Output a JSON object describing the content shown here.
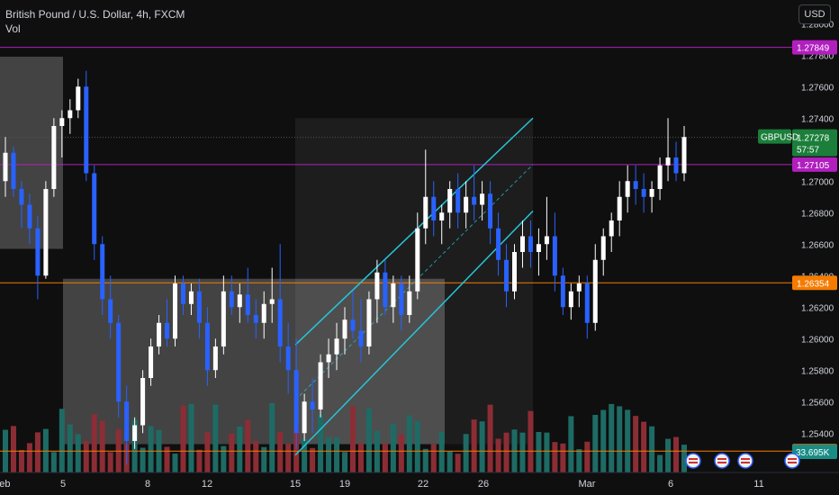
{
  "header": {
    "title": "British Pound / U.S. Dollar, 4h, FXCM",
    "indicator": "Vol"
  },
  "currency_button": "USD",
  "colors": {
    "background": "#0f0f0f",
    "bull": "#ffffff",
    "bear": "#2962ff",
    "vol_bull": "#1e6b65",
    "vol_bear": "#8c2d35",
    "channel": "#26c6da",
    "zone": "#ffffff",
    "level_purple": "#b11fbf",
    "level_orange": "#f57c00",
    "price_green": "#1b7e3a",
    "volume_teal": "#1a8c86"
  },
  "chart_data": {
    "type": "candlestick",
    "symbol": "GBPUSD",
    "timeframe": "4h",
    "y_axis_ticks": [
      "1.28000",
      "1.27800",
      "1.27600",
      "1.27400",
      "1.27200",
      "1.27000",
      "1.26800",
      "1.26600",
      "1.26400",
      "1.26200",
      "1.26000",
      "1.25800",
      "1.25600",
      "1.25400"
    ],
    "x_axis_ticks": [
      "Feb",
      "5",
      "8",
      "12",
      "15",
      "19",
      "22",
      "26",
      "Mar",
      "6",
      "11"
    ],
    "ylim": [
      1.2515,
      1.2815
    ],
    "horizontal_levels": [
      {
        "price": 1.27849,
        "label": "1.27849",
        "color": "purple"
      },
      {
        "price": 1.27105,
        "label": "1.27105",
        "color": "purple"
      },
      {
        "price": 1.26354,
        "label": "1.26354",
        "color": "orange"
      },
      {
        "price": 1.25286,
        "label": "1.25286",
        "color": "orange"
      }
    ],
    "last_price": {
      "symbol": "GBPUSD",
      "price": "1.27278",
      "countdown": "57:57"
    },
    "volume_label": "33.695K",
    "zones": [
      {
        "x_start": "Jan 30",
        "x_end": "Feb 5",
        "y_top": 1.2779,
        "y_bottom": 1.2657
      },
      {
        "x_start": "Feb 5",
        "x_end": "Feb 23",
        "y_top": 1.2638,
        "y_bottom": 1.2533
      },
      {
        "x_start": "Feb 15",
        "x_end": "Feb 28",
        "y_top": 1.274,
        "y_bottom": 1.2533
      }
    ],
    "channel": {
      "upper": [
        [
          "Feb 15",
          1.2596
        ],
        [
          "Feb 28",
          1.274
        ]
      ],
      "lower": [
        [
          "Feb 15",
          1.2526
        ],
        [
          "Feb 28",
          1.2681
        ]
      ]
    },
    "ohlc": [
      [
        1.27,
        1.2728,
        1.269,
        1.2718
      ],
      [
        1.2718,
        1.2722,
        1.269,
        1.2695
      ],
      [
        1.2695,
        1.27,
        1.267,
        1.2685
      ],
      [
        1.2685,
        1.2692,
        1.266,
        1.267
      ],
      [
        1.267,
        1.2678,
        1.2625,
        1.264
      ],
      [
        1.264,
        1.27,
        1.2638,
        1.2695
      ],
      [
        1.2695,
        1.274,
        1.269,
        1.2735
      ],
      [
        1.2735,
        1.2745,
        1.2715,
        1.274
      ],
      [
        1.274,
        1.2752,
        1.273,
        1.2745
      ],
      [
        1.2745,
        1.2765,
        1.274,
        1.276
      ],
      [
        1.276,
        1.277,
        1.27,
        1.2705
      ],
      [
        1.2705,
        1.271,
        1.265,
        1.266
      ],
      [
        1.266,
        1.2665,
        1.2615,
        1.2625
      ],
      [
        1.2625,
        1.264,
        1.26,
        1.261
      ],
      [
        1.261,
        1.2615,
        1.255,
        1.256
      ],
      [
        1.256,
        1.257,
        1.252,
        1.2535
      ],
      [
        1.2535,
        1.255,
        1.253,
        1.2545
      ],
      [
        1.2545,
        1.258,
        1.254,
        1.2575
      ],
      [
        1.2575,
        1.26,
        1.257,
        1.2595
      ],
      [
        1.2595,
        1.2615,
        1.259,
        1.261
      ],
      [
        1.261,
        1.2625,
        1.2595,
        1.26
      ],
      [
        1.26,
        1.264,
        1.2595,
        1.2635
      ],
      [
        1.2635,
        1.264,
        1.2615,
        1.2622
      ],
      [
        1.2622,
        1.2635,
        1.2615,
        1.263
      ],
      [
        1.263,
        1.2638,
        1.26,
        1.261
      ],
      [
        1.261,
        1.262,
        1.257,
        1.258
      ],
      [
        1.258,
        1.26,
        1.2575,
        1.2595
      ],
      [
        1.2595,
        1.264,
        1.259,
        1.263
      ],
      [
        1.263,
        1.264,
        1.2615,
        1.262
      ],
      [
        1.262,
        1.2635,
        1.261,
        1.2628
      ],
      [
        1.2628,
        1.2645,
        1.261,
        1.2615
      ],
      [
        1.2615,
        1.2625,
        1.26,
        1.261
      ],
      [
        1.261,
        1.263,
        1.26,
        1.2622
      ],
      [
        1.2622,
        1.2645,
        1.261,
        1.2625
      ],
      [
        1.2625,
        1.266,
        1.2585,
        1.2595
      ],
      [
        1.2595,
        1.261,
        1.2565,
        1.258
      ],
      [
        1.258,
        1.26,
        1.253,
        1.254
      ],
      [
        1.254,
        1.2565,
        1.2535,
        1.256
      ],
      [
        1.256,
        1.2575,
        1.254,
        1.2555
      ],
      [
        1.2555,
        1.259,
        1.255,
        1.2585
      ],
      [
        1.2585,
        1.26,
        1.2575,
        1.259
      ],
      [
        1.259,
        1.261,
        1.258,
        1.26
      ],
      [
        1.26,
        1.262,
        1.259,
        1.2612
      ],
      [
        1.2612,
        1.263,
        1.26,
        1.2605
      ],
      [
        1.2605,
        1.2625,
        1.2585,
        1.2595
      ],
      [
        1.2595,
        1.263,
        1.259,
        1.2625
      ],
      [
        1.2625,
        1.265,
        1.261,
        1.2642
      ],
      [
        1.2642,
        1.265,
        1.2615,
        1.262
      ],
      [
        1.262,
        1.264,
        1.261,
        1.2635
      ],
      [
        1.2635,
        1.264,
        1.2605,
        1.2615
      ],
      [
        1.2615,
        1.264,
        1.261,
        1.263
      ],
      [
        1.263,
        1.268,
        1.2625,
        1.267
      ],
      [
        1.267,
        1.272,
        1.266,
        1.269
      ],
      [
        1.269,
        1.27,
        1.2665,
        1.2675
      ],
      [
        1.2675,
        1.2685,
        1.266,
        1.268
      ],
      [
        1.268,
        1.27,
        1.267,
        1.2695
      ],
      [
        1.2695,
        1.2705,
        1.267,
        1.268
      ],
      [
        1.268,
        1.27,
        1.267,
        1.269
      ],
      [
        1.269,
        1.271,
        1.2675,
        1.2685
      ],
      [
        1.2685,
        1.27,
        1.2675,
        1.2692
      ],
      [
        1.2692,
        1.27,
        1.266,
        1.267
      ],
      [
        1.267,
        1.268,
        1.264,
        1.265
      ],
      [
        1.265,
        1.266,
        1.262,
        1.263
      ],
      [
        1.263,
        1.266,
        1.2625,
        1.2655
      ],
      [
        1.2655,
        1.2675,
        1.2645,
        1.2665
      ],
      [
        1.2665,
        1.2675,
        1.2645,
        1.2655
      ],
      [
        1.2655,
        1.267,
        1.264,
        1.266
      ],
      [
        1.266,
        1.269,
        1.265,
        1.2665
      ],
      [
        1.2665,
        1.268,
        1.263,
        1.264
      ],
      [
        1.264,
        1.2645,
        1.2615,
        1.262
      ],
      [
        1.262,
        1.2635,
        1.2612,
        1.263
      ],
      [
        1.263,
        1.264,
        1.262,
        1.2635
      ],
      [
        1.2635,
        1.264,
        1.26,
        1.261
      ],
      [
        1.261,
        1.266,
        1.2605,
        1.265
      ],
      [
        1.265,
        1.267,
        1.264,
        1.2665
      ],
      [
        1.2665,
        1.268,
        1.2655,
        1.2675
      ],
      [
        1.2675,
        1.27,
        1.2665,
        1.269
      ],
      [
        1.269,
        1.271,
        1.268,
        1.27
      ],
      [
        1.27,
        1.271,
        1.2685,
        1.2695
      ],
      [
        1.2695,
        1.2705,
        1.268,
        1.269
      ],
      [
        1.269,
        1.27,
        1.268,
        1.2695
      ],
      [
        1.2695,
        1.2715,
        1.2688,
        1.271
      ],
      [
        1.271,
        1.274,
        1.27,
        1.2715
      ],
      [
        1.2715,
        1.2725,
        1.27,
        1.2705
      ],
      [
        1.2705,
        1.2735,
        1.27,
        1.2728
      ]
    ]
  }
}
